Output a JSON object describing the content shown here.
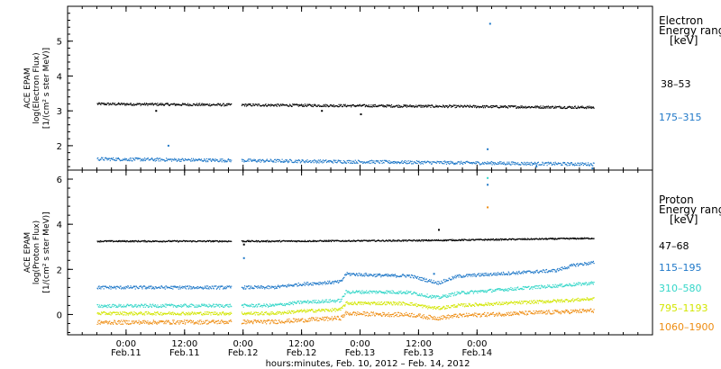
{
  "chart_data": [
    {
      "type": "scatter",
      "panel": "electron",
      "ylabel_lines": [
        "ACE EPAM",
        "log(Electron Flux)",
        "[1/(cm² s ster MeV)]"
      ],
      "ylim": [
        1.3,
        6.0
      ],
      "yticks": [
        2,
        3,
        4,
        5
      ],
      "xlim_hours": [
        -12,
        108
      ],
      "legend": {
        "title_lines": [
          "Electron",
          "Energy range",
          "[keV]"
        ],
        "entries": [
          {
            "label": "38–53",
            "color": "#000000"
          },
          {
            "label": "175–315",
            "color": "#1f78c8"
          }
        ]
      },
      "series": [
        {
          "name": "38–53",
          "color": "#000000",
          "start": 3.2,
          "end": 3.1,
          "noise": 0.035,
          "outliers": [
            [
              6,
              3.0
            ],
            [
              40,
              3.0
            ],
            [
              48,
              2.9
            ]
          ]
        },
        {
          "name": "175–315",
          "color": "#1f78c8",
          "start": 1.62,
          "end": 1.47,
          "noise": 0.045,
          "outliers": [
            [
              8.5,
              2.0
            ],
            [
              74,
              1.9
            ],
            [
              74.5,
              5.5
            ],
            [
              84,
              1.4
            ],
            [
              95.5,
              1.35
            ]
          ]
        }
      ]
    },
    {
      "type": "scatter",
      "panel": "proton",
      "ylabel_lines": [
        "ACE EPAM",
        "log(Proton Flux)",
        "[1/(cm² s ster MeV)]"
      ],
      "ylim": [
        -0.9,
        6.4
      ],
      "yticks": [
        0,
        2,
        4,
        6
      ],
      "xlim_hours": [
        -12,
        108
      ],
      "legend": {
        "title_lines": [
          "Proton",
          "Energy range",
          "[keV]"
        ],
        "entries": [
          {
            "label": "47–68",
            "color": "#000000"
          },
          {
            "label": "115–195",
            "color": "#1f78c8"
          },
          {
            "label": "310–580",
            "color": "#33d6c8"
          },
          {
            "label": "795–1193",
            "color": "#d2e600"
          },
          {
            "label": "1060–1900",
            "color": "#ee8c10"
          }
        ]
      },
      "series": [
        {
          "name": "47–68",
          "color": "#000000",
          "noise": 0.03,
          "profile": [
            [
              -6,
              3.25
            ],
            [
              30,
              3.25
            ],
            [
              60,
              3.28
            ],
            [
              96,
              3.38
            ]
          ],
          "outliers": [
            [
              64,
              3.75
            ],
            [
              24,
              3.1
            ]
          ]
        },
        {
          "name": "115–195",
          "color": "#1f78c8",
          "noise": 0.07,
          "profile": [
            [
              -6,
              1.2
            ],
            [
              30,
              1.2
            ],
            [
              36,
              1.35
            ],
            [
              44,
              1.45
            ],
            [
              45,
              1.8
            ],
            [
              54,
              1.72
            ],
            [
              58,
              1.72
            ],
            [
              62,
              1.5
            ],
            [
              64,
              1.4
            ],
            [
              68,
              1.7
            ],
            [
              80,
              1.85
            ],
            [
              88,
              1.95
            ],
            [
              92,
              2.2
            ],
            [
              96,
              2.3
            ]
          ],
          "outliers": [
            [
              24,
              2.5
            ],
            [
              63,
              1.8
            ],
            [
              74,
              5.75
            ]
          ]
        },
        {
          "name": "310–580",
          "color": "#33d6c8",
          "noise": 0.07,
          "profile": [
            [
              -6,
              0.38
            ],
            [
              30,
              0.4
            ],
            [
              36,
              0.55
            ],
            [
              44,
              0.62
            ],
            [
              45,
              1.0
            ],
            [
              54,
              1.0
            ],
            [
              58,
              0.98
            ],
            [
              62,
              0.82
            ],
            [
              64,
              0.75
            ],
            [
              68,
              0.95
            ],
            [
              80,
              1.15
            ],
            [
              90,
              1.3
            ],
            [
              96,
              1.4
            ]
          ],
          "outliers": [
            [
              74,
              6.05
            ]
          ]
        },
        {
          "name": "795–1193",
          "color": "#d2e600",
          "noise": 0.07,
          "profile": [
            [
              -6,
              0.05
            ],
            [
              30,
              0.05
            ],
            [
              36,
              0.15
            ],
            [
              44,
              0.22
            ],
            [
              45,
              0.5
            ],
            [
              54,
              0.5
            ],
            [
              58,
              0.48
            ],
            [
              62,
              0.32
            ],
            [
              64,
              0.28
            ],
            [
              68,
              0.4
            ],
            [
              80,
              0.52
            ],
            [
              90,
              0.62
            ],
            [
              96,
              0.7
            ]
          ],
          "outliers": []
        },
        {
          "name": "1060–1900",
          "color": "#ee8c10",
          "noise": 0.09,
          "profile": [
            [
              -6,
              -0.35
            ],
            [
              30,
              -0.32
            ],
            [
              36,
              -0.25
            ],
            [
              44,
              -0.15
            ],
            [
              45,
              0.05
            ],
            [
              54,
              0.0
            ],
            [
              58,
              0.0
            ],
            [
              62,
              -0.12
            ],
            [
              64,
              -0.15
            ],
            [
              68,
              -0.05
            ],
            [
              80,
              0.05
            ],
            [
              90,
              0.12
            ],
            [
              96,
              0.18
            ]
          ],
          "outliers": [
            [
              74,
              4.75
            ]
          ]
        }
      ]
    }
  ],
  "xaxis": {
    "ticks": [
      {
        "h": 0,
        "time": "0:00",
        "date": "Feb.11"
      },
      {
        "h": 12,
        "time": "12:00",
        "date": "Feb.11"
      },
      {
        "h": 24,
        "time": "0:00",
        "date": "Feb.12"
      },
      {
        "h": 36,
        "time": "12:00",
        "date": "Feb.12"
      },
      {
        "h": 48,
        "time": "0:00",
        "date": "Feb.13"
      },
      {
        "h": 60,
        "time": "12:00",
        "date": "Feb.13"
      },
      {
        "h": 72,
        "time": "0:00",
        "date": "Feb.14"
      }
    ],
    "label": "hours:minutes, Feb. 10, 2012 – Feb. 14, 2012"
  }
}
